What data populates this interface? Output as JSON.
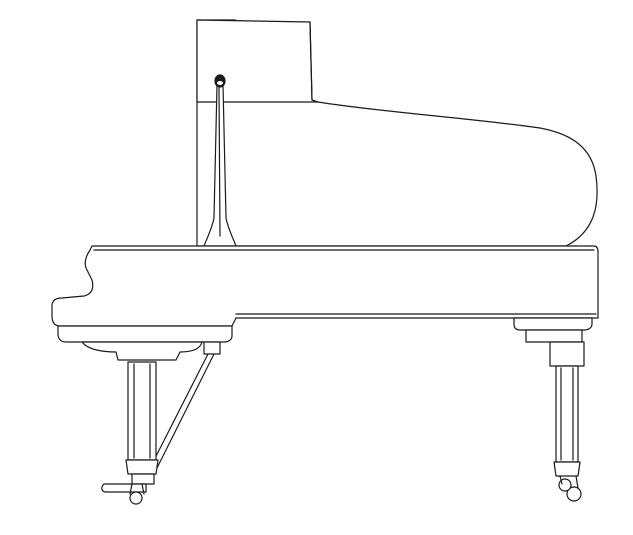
{
  "figure": {
    "subject": "grand-piano-side-view",
    "line_color": "#1a1a1a",
    "background_color": "#ffffff"
  }
}
